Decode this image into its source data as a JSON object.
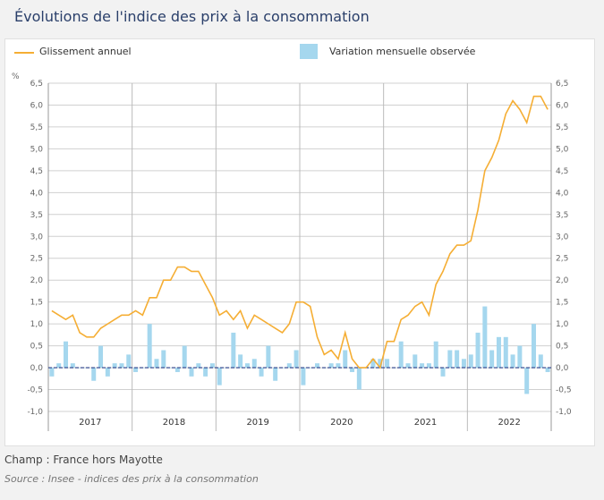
{
  "page": {
    "title": "Évolutions de l'indice des prix à la consommation",
    "note": "Champ : France hors Mayotte",
    "source": "Source : Insee - indices des prix à la consommation"
  },
  "chart_data": {
    "type": "line+bar",
    "title": "Évolutions de l'indice des prix à la consommation",
    "ylabel": "%",
    "ylim": [
      -1.0,
      6.5
    ],
    "yticks": [
      "6,5",
      "6,0",
      "5,5",
      "5,0",
      "4,5",
      "4,0",
      "3,5",
      "3,0",
      "2,5",
      "2,0",
      "1,5",
      "1,0",
      "0,5",
      "0,0",
      "-0,5",
      "-1,0"
    ],
    "ytick_values": [
      6.5,
      6.0,
      5.5,
      5.0,
      4.5,
      4.0,
      3.5,
      3.0,
      2.5,
      2.0,
      1.5,
      1.0,
      0.5,
      0.0,
      -0.5,
      -1.0
    ],
    "categories": [
      "2017",
      "2018",
      "2019",
      "2020",
      "2021",
      "2022"
    ],
    "grid": true,
    "legend_position": "top",
    "series": [
      {
        "name": "Glissement annuel",
        "type": "line",
        "color": "#f5ae34",
        "values": [
          1.3,
          1.2,
          1.1,
          1.2,
          0.8,
          0.7,
          0.7,
          0.9,
          1.0,
          1.1,
          1.2,
          1.2,
          1.3,
          1.2,
          1.6,
          1.6,
          2.0,
          2.0,
          2.3,
          2.3,
          2.2,
          2.2,
          1.9,
          1.6,
          1.2,
          1.3,
          1.1,
          1.3,
          0.9,
          1.2,
          1.1,
          1.0,
          0.9,
          0.8,
          1.0,
          1.5,
          1.5,
          1.4,
          0.7,
          0.3,
          0.4,
          0.2,
          0.8,
          0.2,
          0.0,
          0.0,
          0.2,
          0.0,
          0.6,
          0.6,
          1.1,
          1.2,
          1.4,
          1.5,
          1.2,
          1.9,
          2.2,
          2.6,
          2.8,
          2.8,
          2.9,
          3.6,
          4.5,
          4.8,
          5.2,
          5.8,
          6.1,
          5.9,
          5.6,
          6.2,
          6.2,
          5.9
        ]
      },
      {
        "name": "Variation mensuelle observée",
        "type": "bar",
        "color": "#a5d7ee",
        "values": [
          -0.2,
          0.1,
          0.6,
          0.1,
          0.0,
          0.0,
          -0.3,
          0.5,
          -0.2,
          0.1,
          0.1,
          0.3,
          -0.1,
          0.0,
          1.0,
          0.2,
          0.4,
          0.0,
          -0.1,
          0.5,
          -0.2,
          0.1,
          -0.2,
          0.1,
          -0.4,
          0.0,
          0.8,
          0.3,
          0.1,
          0.2,
          -0.2,
          0.5,
          -0.3,
          0.0,
          0.1,
          0.4,
          -0.4,
          0.0,
          0.1,
          0.0,
          0.1,
          0.1,
          0.4,
          -0.1,
          -0.5,
          0.0,
          0.2,
          0.2,
          0.2,
          0.0,
          0.6,
          0.1,
          0.3,
          0.1,
          0.1,
          0.6,
          -0.2,
          0.4,
          0.4,
          0.2,
          0.3,
          0.8,
          1.4,
          0.4,
          0.7,
          0.7,
          0.3,
          0.5,
          -0.6,
          1.0,
          0.3,
          -0.1
        ]
      }
    ]
  }
}
